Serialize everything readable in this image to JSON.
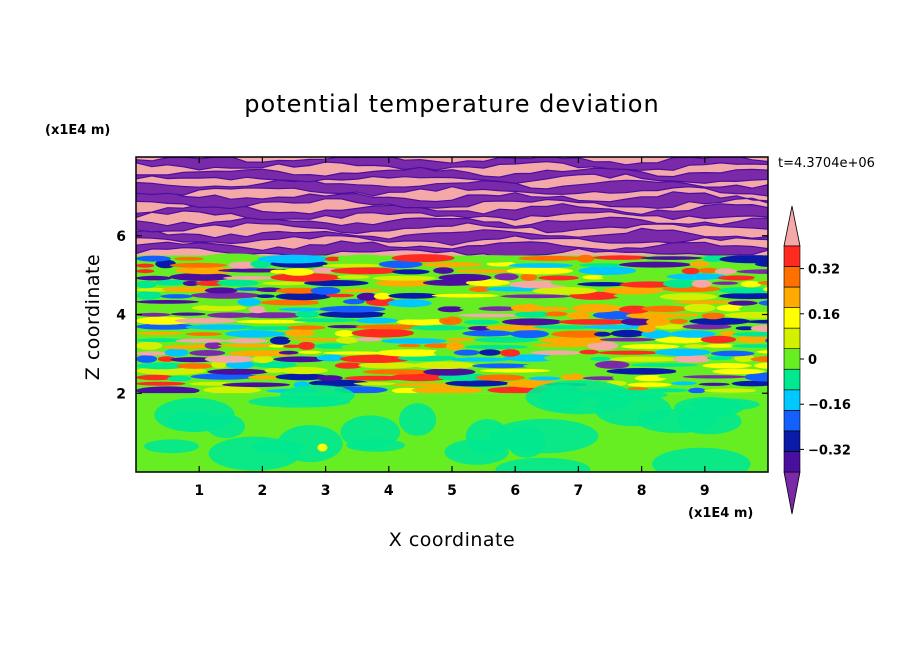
{
  "chart_data": {
    "type": "heatmap",
    "title": "potential temperature deviation",
    "xlabel": "X coordinate",
    "ylabel": "Z coordinate",
    "x_unit": "(x1E4 m)",
    "y_unit": "(x1E4 m)",
    "time_label": "t=4.3704e+06",
    "xlim": [
      0,
      10
    ],
    "ylim": [
      0,
      8
    ],
    "x_ticks": [
      "1",
      "2",
      "3",
      "4",
      "5",
      "6",
      "7",
      "8",
      "9"
    ],
    "x_tick_values": [
      1,
      2,
      3,
      4,
      5,
      6,
      7,
      8,
      9
    ],
    "y_ticks": [
      "2",
      "4",
      "6"
    ],
    "y_tick_values": [
      2,
      4,
      6
    ],
    "colorbar": {
      "levels": [
        -0.48,
        -0.4,
        -0.32,
        -0.24,
        -0.16,
        -0.08,
        0,
        0.08,
        0.16,
        0.24,
        0.32,
        0.4,
        0.48
      ],
      "tick_labels": [
        "0.32",
        "0.16",
        "0",
        "−0.16",
        "−0.32"
      ],
      "tick_values": [
        0.32,
        0.16,
        0,
        -0.16,
        -0.32
      ],
      "colors": [
        "#7a2aa8",
        "#4b0fa0",
        "#0a1aa8",
        "#1460ff",
        "#00c8ff",
        "#00e890",
        "#66ee22",
        "#d2f000",
        "#ffff00",
        "#ffaa00",
        "#ff7000",
        "#ff2a20",
        "#f5a8a8"
      ],
      "extend": "both"
    },
    "layers": [
      {
        "z_range": [
          0,
          2.0
        ],
        "description_values": [
          -0.08,
          0,
          0.08
        ],
        "dominant": [
          0,
          0.08
        ]
      },
      {
        "z_range": [
          2.0,
          5.5
        ],
        "mixed_range": [
          -0.48,
          0.48
        ]
      },
      {
        "z_range": [
          5.5,
          8.0
        ],
        "alternating": [
          -0.48,
          0.48
        ]
      }
    ]
  }
}
